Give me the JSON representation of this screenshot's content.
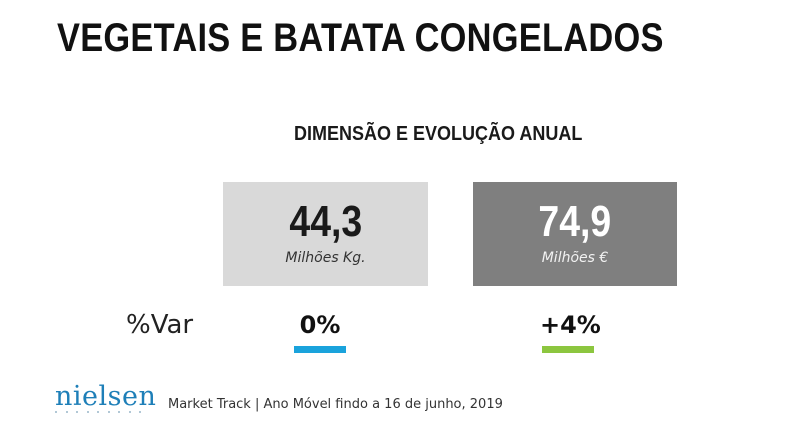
{
  "title": "VEGETAIS E BATATA CONGELADOS",
  "subtitle": "DIMENSÃO E EVOLUÇÃO ANUAL",
  "kpis": [
    {
      "value": "44,3",
      "unit": "Milhões Kg.",
      "var": "0%",
      "box_color": "#d9d9d9",
      "bar_color": "#1aa3dc"
    },
    {
      "value": "74,9",
      "unit": "Milhões €",
      "var": "+4%",
      "box_color": "#7f7f7f",
      "bar_color": "#8cc63f"
    }
  ],
  "var_label": "%Var",
  "logo": "nielsen",
  "footer": "Market Track | Ano Móvel findo a 16 de junho, 2019"
}
